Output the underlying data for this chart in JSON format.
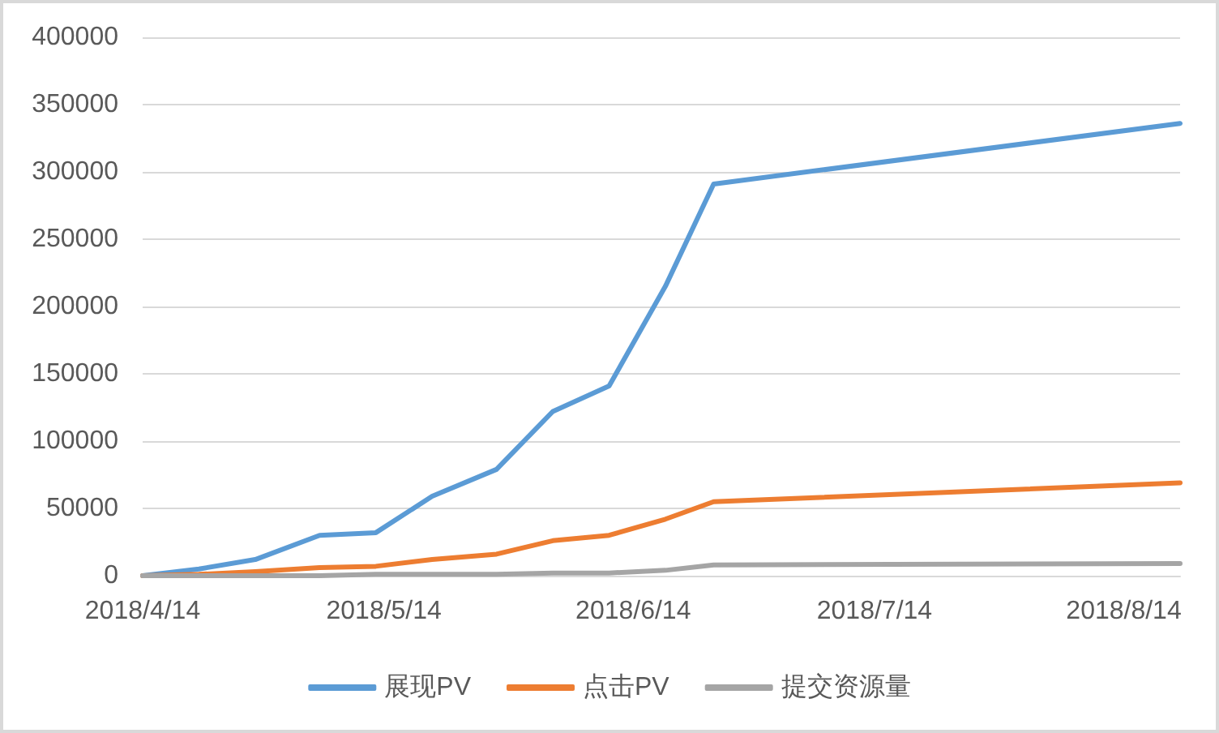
{
  "chart_data": {
    "type": "line",
    "x": [
      "2018-04-14",
      "2018-04-21",
      "2018-04-28",
      "2018-05-06",
      "2018-05-13",
      "2018-05-20",
      "2018-05-28",
      "2018-06-04",
      "2018-06-11",
      "2018-06-18",
      "2018-06-24",
      "2018-08-21"
    ],
    "series": [
      {
        "name": "展现PV",
        "color": "#5b9bd5",
        "values": [
          0,
          5000,
          12000,
          30000,
          32000,
          59000,
          79000,
          122000,
          141000,
          215000,
          291000,
          336000
        ]
      },
      {
        "name": "点击PV",
        "color": "#ed7d31",
        "values": [
          0,
          1000,
          3000,
          6000,
          7000,
          12000,
          16000,
          26000,
          30000,
          42000,
          55000,
          69000
        ]
      },
      {
        "name": "提交资源量",
        "color": "#a5a5a5",
        "values": [
          0,
          0,
          0,
          0,
          1000,
          1000,
          1000,
          2000,
          2000,
          4000,
          8000,
          9000
        ]
      }
    ],
    "xlim": [
      "2018-04-14",
      "2018-08-21"
    ],
    "xticks": [
      {
        "value": "2018-04-14",
        "label": "2018/4/14"
      },
      {
        "value": "2018-05-14",
        "label": "2018/5/14"
      },
      {
        "value": "2018-06-14",
        "label": "2018/6/14"
      },
      {
        "value": "2018-07-14",
        "label": "2018/7/14"
      },
      {
        "value": "2018-08-14",
        "label": "2018/8/14"
      }
    ],
    "ylim": [
      0,
      400000
    ],
    "yticks": [
      0,
      50000,
      100000,
      150000,
      200000,
      250000,
      300000,
      350000,
      400000
    ],
    "grid": "y",
    "legend": "bottom",
    "marker": "none",
    "line_style": "solid"
  }
}
